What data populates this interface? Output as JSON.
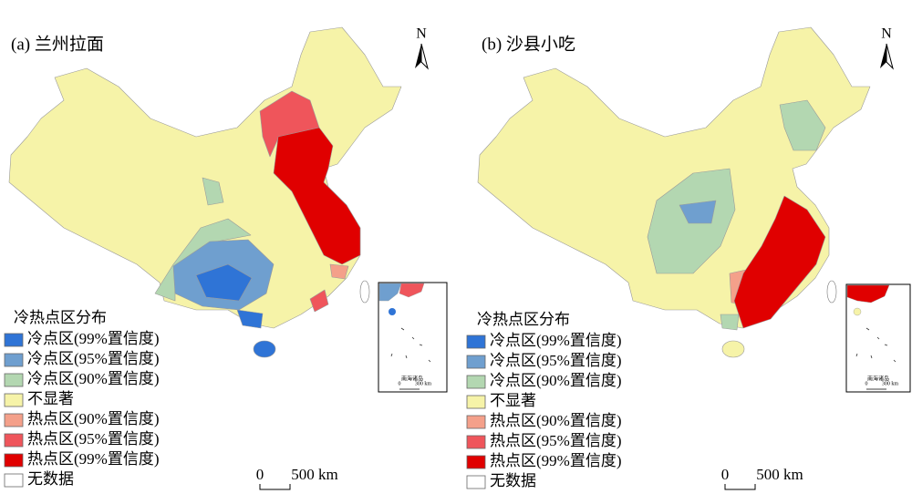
{
  "panels": [
    {
      "title": "(a) 兰州拉面",
      "north": "N",
      "inset": {
        "label": "南海诸岛",
        "scale_start": "0",
        "scale_end": "300 km"
      },
      "scale": {
        "start": "0",
        "end": "500 km"
      },
      "legend": {
        "title": "冷热点区分布",
        "items": [
          {
            "label": "冷点区(99%置信度)",
            "color": "#2f74d6"
          },
          {
            "label": "冷点区(95%置信度)",
            "color": "#6f9fcf"
          },
          {
            "label": "冷点区(90%置信度)",
            "color": "#b3d7b1"
          },
          {
            "label": "不显著",
            "color": "#f6f3a8"
          },
          {
            "label": "热点区(90%置信度)",
            "color": "#f4a08a"
          },
          {
            "label": "热点区(95%置信度)",
            "color": "#ef555b"
          },
          {
            "label": "热点区(99%置信度)",
            "color": "#e00000"
          },
          {
            "label": "无数据",
            "color": "#ffffff"
          }
        ]
      }
    },
    {
      "title": "(b) 沙县小吃",
      "north": "N",
      "inset": {
        "label": "南海诸岛",
        "scale_start": "0",
        "scale_end": "300 km"
      },
      "scale": {
        "start": "0",
        "end": "500 km"
      },
      "legend": {
        "title": "冷热点区分布",
        "items": [
          {
            "label": "冷点区(99%置信度)",
            "color": "#2f74d6"
          },
          {
            "label": "冷点区(95%置信度)",
            "color": "#6f9fcf"
          },
          {
            "label": "冷点区(90%置信度)",
            "color": "#b3d7b1"
          },
          {
            "label": "不显著",
            "color": "#f6f3a8"
          },
          {
            "label": "热点区(90%置信度)",
            "color": "#f4a08a"
          },
          {
            "label": "热点区(95%置信度)",
            "color": "#ef555b"
          },
          {
            "label": "热点区(99%置信度)",
            "color": "#e00000"
          },
          {
            "label": "无数据",
            "color": "#ffffff"
          }
        ]
      }
    }
  ]
}
